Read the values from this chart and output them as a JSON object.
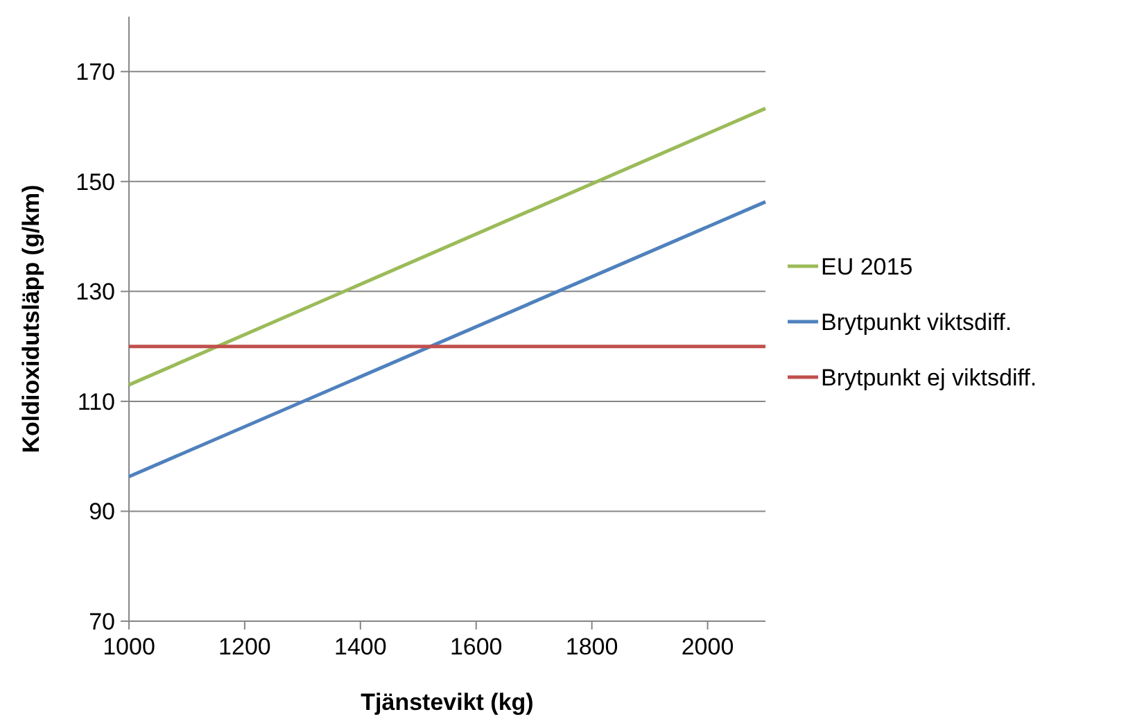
{
  "chart_data": {
    "type": "line",
    "xlabel": "Tjänstevikt (kg)",
    "ylabel": "Koldioxidutsläpp (g/km)",
    "x": [
      1000,
      2100
    ],
    "series": [
      {
        "name": "EU 2015",
        "color": "#9bbb59",
        "values": [
          113,
          163.3
        ]
      },
      {
        "name": "Brytpunkt viktsdiff.",
        "color": "#4f81bd",
        "values": [
          96.3,
          146.3
        ]
      },
      {
        "name": "Brytpunkt ej viktsdiff.",
        "color": "#c0504d",
        "values": [
          120,
          120
        ]
      }
    ],
    "xlim": [
      1000,
      2100
    ],
    "xticks": [
      1000,
      1200,
      1400,
      1600,
      1800,
      2000
    ],
    "ylim": [
      70,
      180
    ],
    "yticks": [
      70,
      90,
      110,
      130,
      150,
      170
    ],
    "grid": "y",
    "legend": "right",
    "marker": "none",
    "line_style": "solid"
  }
}
